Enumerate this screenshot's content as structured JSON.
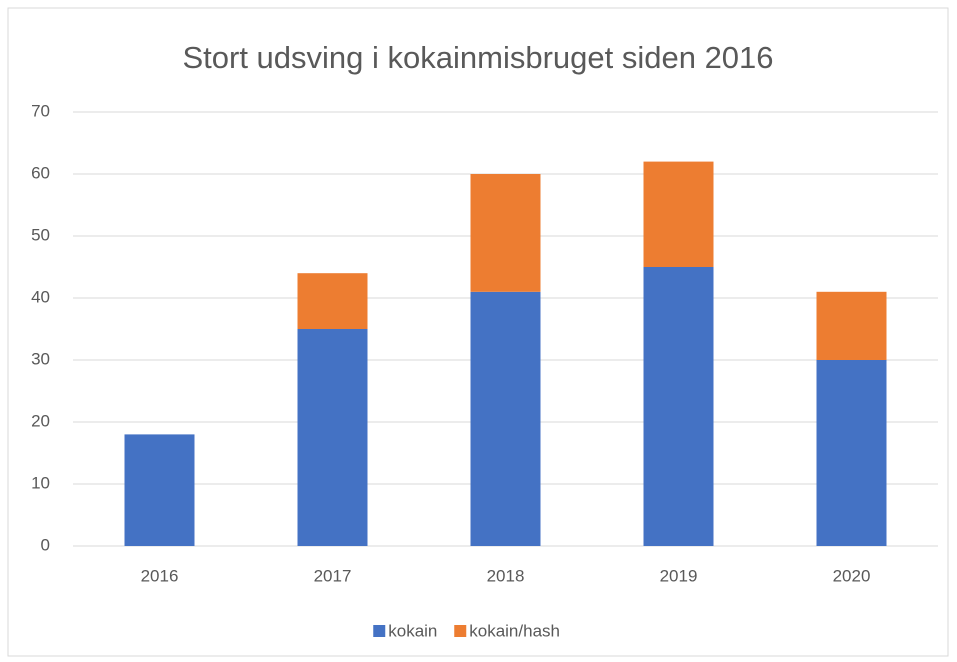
{
  "chart_data": {
    "type": "stacked_bar",
    "title": "Stort udsving i kokainmisbruget siden 2016",
    "categories": [
      "2016",
      "2017",
      "2018",
      "2019",
      "2020"
    ],
    "series": [
      {
        "name": "kokain",
        "color": "#4472c4",
        "values": [
          18,
          35,
          41,
          45,
          30
        ]
      },
      {
        "name": "kokain/hash",
        "color": "#ed7d31",
        "values": [
          0,
          9,
          19,
          17,
          11
        ]
      }
    ],
    "ylim": [
      0,
      70
    ],
    "yticks": [
      0,
      10,
      20,
      30,
      40,
      50,
      60,
      70
    ],
    "grid": true,
    "legend": "bottom"
  }
}
